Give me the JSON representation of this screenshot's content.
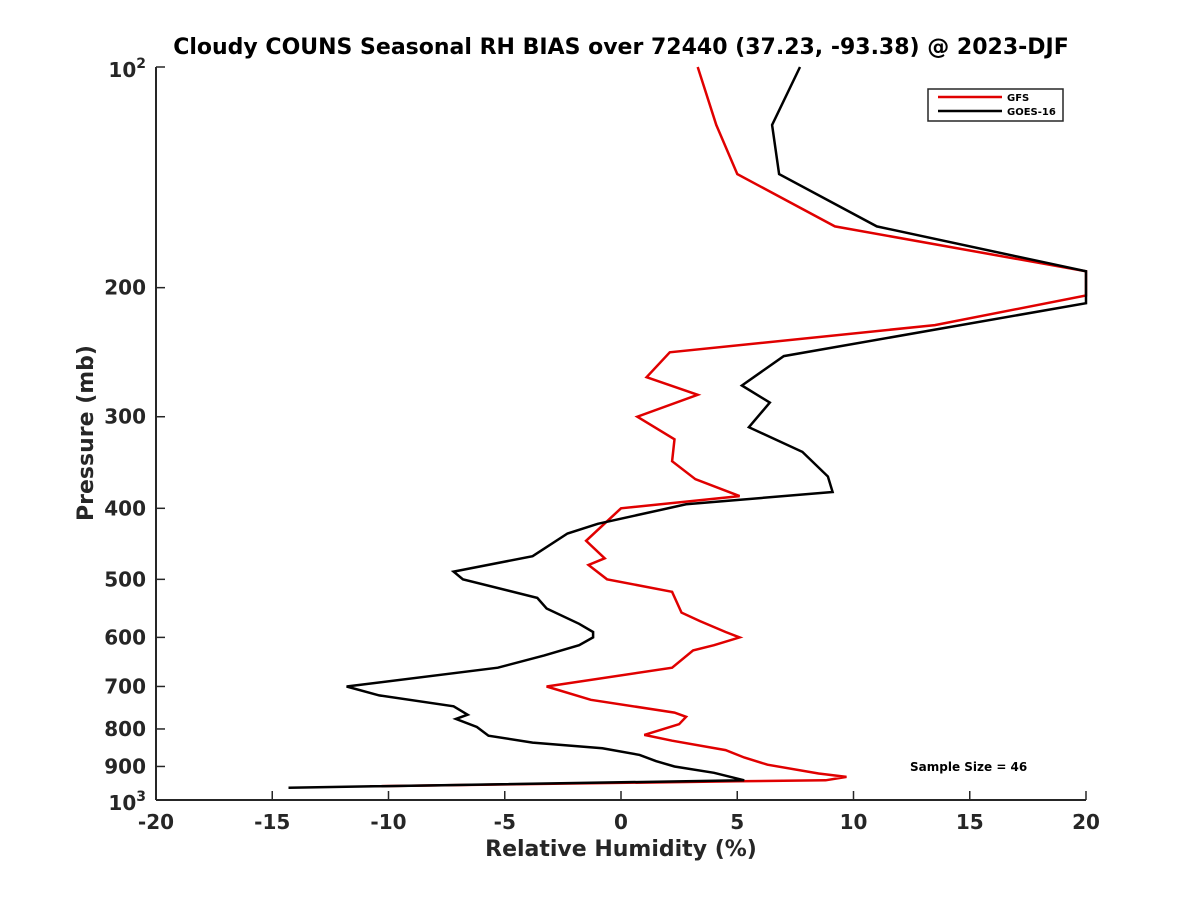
{
  "chart_data": {
    "type": "line",
    "title": "Cloudy COUNS Seasonal RH BIAS over 72440 (37.23, -93.38) @ 2023-DJF",
    "xlabel": "Relative Humidity (%)",
    "ylabel": "Pressure (mb)",
    "xlim": [
      -20,
      20
    ],
    "ylim": [
      100,
      1000
    ],
    "yscale": "log",
    "yreversed": true,
    "xticks": [
      -20,
      -15,
      -10,
      -5,
      0,
      5,
      10,
      15,
      20
    ],
    "xtick_labels": [
      "-20",
      "-15",
      "-10",
      "-5",
      "0",
      "5",
      "10",
      "15",
      "20"
    ],
    "yticks": [
      200,
      300,
      400,
      500,
      600,
      700,
      800,
      900
    ],
    "ytick_labels": [
      "200",
      "300",
      "400",
      "500",
      "600",
      "700",
      "800",
      "900"
    ],
    "ytick_top": {
      "base": "10",
      "exp": "2"
    },
    "ytick_bottom": {
      "base": "10",
      "exp": "3"
    },
    "legend_position": "top-right",
    "annotation": "Sample Size = 46",
    "series": [
      {
        "name": "GFS",
        "color": "#e00000",
        "points": [
          [
            3.3,
            100
          ],
          [
            4.1,
            120
          ],
          [
            5.0,
            140
          ],
          [
            9.2,
            165
          ],
          [
            20.0,
            190
          ],
          [
            20.0,
            205
          ],
          [
            13.5,
            225
          ],
          [
            2.1,
            245
          ],
          [
            1.1,
            265
          ],
          [
            3.3,
            280
          ],
          [
            0.7,
            300
          ],
          [
            2.3,
            322
          ],
          [
            2.2,
            345
          ],
          [
            3.2,
            365
          ],
          [
            5.1,
            385
          ],
          [
            0.0,
            400
          ],
          [
            -1.5,
            443
          ],
          [
            -0.7,
            468
          ],
          [
            -1.4,
            478
          ],
          [
            -0.6,
            500
          ],
          [
            2.2,
            520
          ],
          [
            2.6,
            555
          ],
          [
            3.4,
            570
          ],
          [
            4.5,
            590
          ],
          [
            5.1,
            600
          ],
          [
            4.0,
            615
          ],
          [
            3.1,
            625
          ],
          [
            2.2,
            660
          ],
          [
            -3.2,
            700
          ],
          [
            -1.3,
            730
          ],
          [
            2.3,
            760
          ],
          [
            2.8,
            770
          ],
          [
            2.5,
            788
          ],
          [
            1.0,
            815
          ],
          [
            2.2,
            830
          ],
          [
            4.5,
            855
          ],
          [
            5.3,
            875
          ],
          [
            6.3,
            895
          ],
          [
            8.5,
            920
          ],
          [
            9.7,
            930
          ],
          [
            8.8,
            940
          ],
          [
            5.0,
            943
          ],
          [
            -10.8,
            958
          ]
        ]
      },
      {
        "name": "GOES-16",
        "color": "#000000",
        "points": [
          [
            7.7,
            100
          ],
          [
            6.5,
            120
          ],
          [
            6.8,
            140
          ],
          [
            11.0,
            165
          ],
          [
            20.0,
            190
          ],
          [
            20.0,
            210
          ],
          [
            7.0,
            248
          ],
          [
            5.2,
            272
          ],
          [
            6.4,
            287
          ],
          [
            5.5,
            310
          ],
          [
            7.8,
            335
          ],
          [
            8.9,
            362
          ],
          [
            9.1,
            380
          ],
          [
            2.8,
            395
          ],
          [
            -1.0,
            420
          ],
          [
            -2.3,
            433
          ],
          [
            -3.8,
            465
          ],
          [
            -7.2,
            488
          ],
          [
            -6.8,
            500
          ],
          [
            -3.6,
            530
          ],
          [
            -3.2,
            548
          ],
          [
            -1.8,
            575
          ],
          [
            -1.2,
            590
          ],
          [
            -1.2,
            600
          ],
          [
            -1.8,
            615
          ],
          [
            -3.3,
            635
          ],
          [
            -5.3,
            660
          ],
          [
            -11.8,
            700
          ],
          [
            -10.4,
            720
          ],
          [
            -7.2,
            745
          ],
          [
            -6.6,
            765
          ],
          [
            -7.1,
            775
          ],
          [
            -6.2,
            795
          ],
          [
            -5.7,
            817
          ],
          [
            -3.8,
            835
          ],
          [
            -0.8,
            850
          ],
          [
            0.8,
            868
          ],
          [
            1.5,
            885
          ],
          [
            2.3,
            900
          ],
          [
            4.0,
            918
          ],
          [
            5.3,
            940
          ],
          [
            -14.3,
            962
          ]
        ]
      }
    ]
  }
}
